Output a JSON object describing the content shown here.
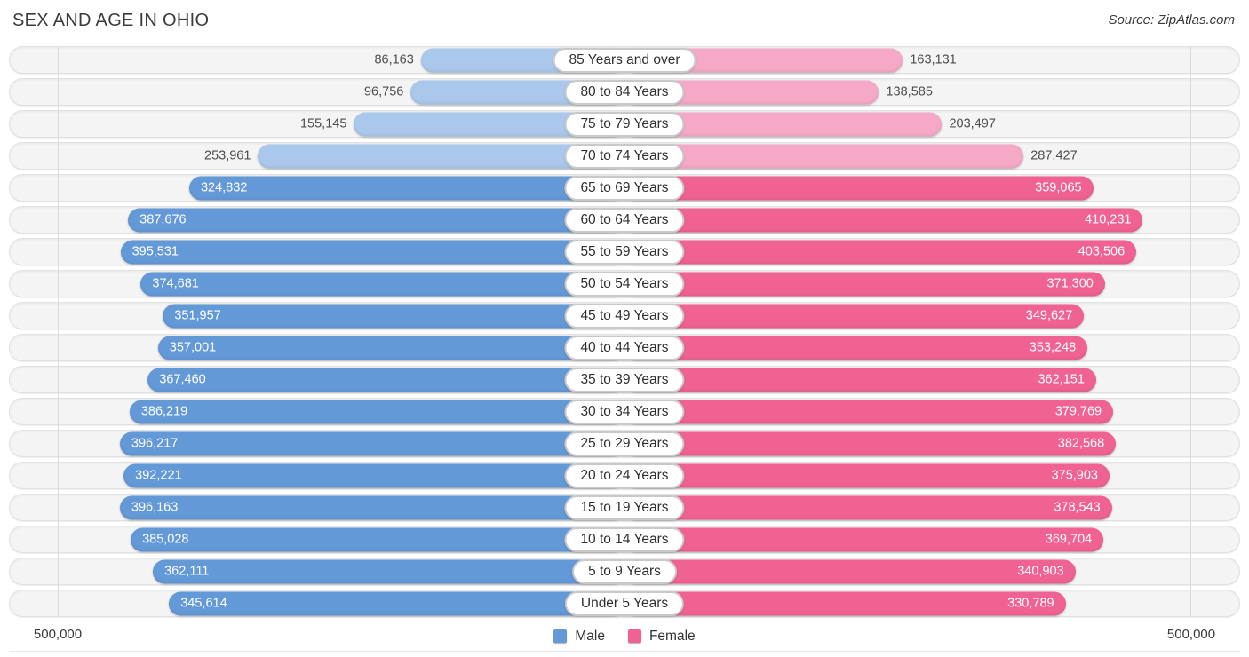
{
  "title": "SEX AND AGE IN OHIO",
  "source": "Source: ZipAtlas.com",
  "colors": {
    "male": "#6499d8",
    "male_light": "#a9c8ec",
    "female": "#f06292",
    "female_light": "#f5a9c6",
    "value_inside": "#ffffff",
    "value_outside": "#4d4d4d"
  },
  "chart_data": {
    "type": "bar",
    "subtype": "population-pyramid",
    "title": "SEX AND AGE IN OHIO",
    "categories": [
      "85 Years and over",
      "80 to 84 Years",
      "75 to 79 Years",
      "70 to 74 Years",
      "65 to 69 Years",
      "60 to 64 Years",
      "55 to 59 Years",
      "50 to 54 Years",
      "45 to 49 Years",
      "40 to 44 Years",
      "35 to 39 Years",
      "30 to 34 Years",
      "25 to 29 Years",
      "20 to 24 Years",
      "15 to 19 Years",
      "10 to 14 Years",
      "5 to 9 Years",
      "Under 5 Years"
    ],
    "series": [
      {
        "name": "Male",
        "color": "#6499d8",
        "color_light": "#a9c8ec",
        "values": [
          86163,
          96756,
          155145,
          253961,
          324832,
          387676,
          395531,
          374681,
          351957,
          357001,
          367460,
          386219,
          396217,
          392221,
          396163,
          385028,
          362111,
          345614
        ],
        "formatted": [
          "86,163",
          "96,756",
          "155,145",
          "253,961",
          "324,832",
          "387,676",
          "395,531",
          "374,681",
          "351,957",
          "357,001",
          "367,460",
          "386,219",
          "396,217",
          "392,221",
          "396,163",
          "385,028",
          "362,111",
          "345,614"
        ]
      },
      {
        "name": "Female",
        "color": "#f06292",
        "color_light": "#f5a9c6",
        "values": [
          163131,
          138585,
          203497,
          287427,
          359065,
          410231,
          403506,
          371300,
          349627,
          353248,
          362151,
          379769,
          382568,
          375903,
          378543,
          369704,
          340903,
          330789
        ],
        "formatted": [
          "163,131",
          "138,585",
          "203,497",
          "287,427",
          "359,065",
          "410,231",
          "403,506",
          "371,300",
          "349,627",
          "353,248",
          "362,151",
          "379,769",
          "382,568",
          "375,903",
          "378,543",
          "369,704",
          "340,903",
          "330,789"
        ]
      }
    ],
    "xlim": [
      0,
      500000
    ],
    "axis_labels": {
      "left": "500,000",
      "right": "500,000"
    },
    "inside_label_threshold": 300000,
    "legend_position": "bottom-center",
    "grid": "vertical edge gridlines at 500,000 on both sides"
  }
}
